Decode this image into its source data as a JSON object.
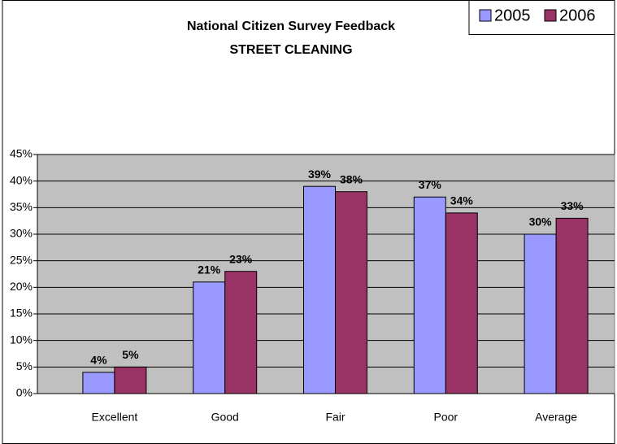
{
  "chart_data": {
    "type": "bar",
    "title": "National Citizen Survey Feedback",
    "subtitle": "STREET CLEANING",
    "categories": [
      "Excellent",
      "Good",
      "Fair",
      "Poor",
      "Average"
    ],
    "series": [
      {
        "name": "2005",
        "color": "#9999ff",
        "values": [
          4,
          21,
          39,
          37,
          30
        ],
        "value_labels": [
          "4%",
          "21%",
          "39%",
          "37%",
          "30%"
        ]
      },
      {
        "name": "2006",
        "color": "#993366",
        "values": [
          5,
          23,
          38,
          34,
          33
        ],
        "value_labels": [
          "5%",
          "23%",
          "38%",
          "34%",
          "33%"
        ]
      }
    ],
    "ylim": [
      0,
      45
    ],
    "yticks": [
      {
        "value": 0,
        "label": "0%"
      },
      {
        "value": 5,
        "label": "5%"
      },
      {
        "value": 10,
        "label": "10%"
      },
      {
        "value": 15,
        "label": "15%"
      },
      {
        "value": 20,
        "label": "20%"
      },
      {
        "value": 25,
        "label": "25%"
      },
      {
        "value": 30,
        "label": "30%"
      },
      {
        "value": 35,
        "label": "35%"
      },
      {
        "value": 40,
        "label": "40%"
      },
      {
        "value": 45,
        "label": "45%"
      }
    ],
    "grid": true,
    "legend": "top-right"
  }
}
